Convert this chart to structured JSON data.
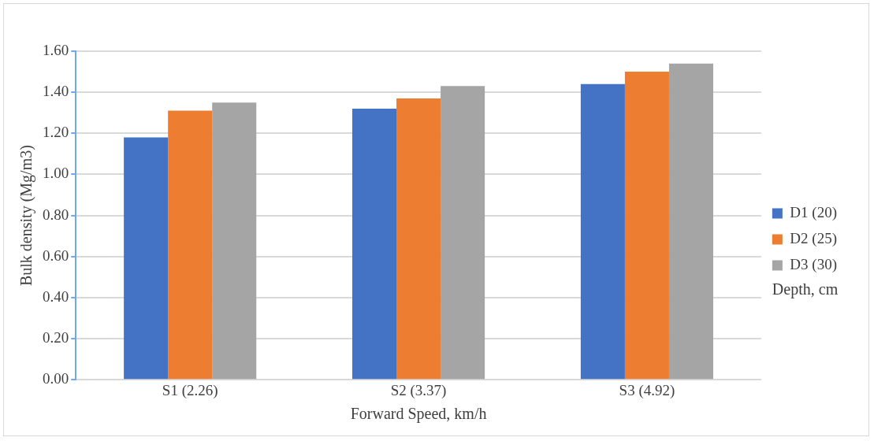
{
  "chart_data": {
    "type": "bar",
    "xlabel": "Forward Speed, km/h",
    "ylabel": "Bulk density (Mg/m3)",
    "legend_title": "Depth, cm",
    "categories": [
      "S1 (2.26)",
      "S2 (3.37)",
      "S3 (4.92)"
    ],
    "series": [
      {
        "name": "D1 (20)",
        "color": "#4472c4",
        "values": [
          1.18,
          1.32,
          1.44
        ]
      },
      {
        "name": "D2 (25)",
        "color": "#ed7d31",
        "values": [
          1.31,
          1.37,
          1.5
        ]
      },
      {
        "name": "D3 (30)",
        "color": "#a5a5a5",
        "values": [
          1.35,
          1.43,
          1.54
        ]
      }
    ],
    "ylim": [
      0,
      1.6
    ],
    "yticks": [
      {
        "value": 0,
        "label": "0.00"
      },
      {
        "value": 0.2,
        "label": "0.20"
      },
      {
        "value": 0.4,
        "label": "0.40"
      },
      {
        "value": 0.6,
        "label": "0.60"
      },
      {
        "value": 0.8,
        "label": "0.80"
      },
      {
        "value": 1.0,
        "label": "1.00"
      },
      {
        "value": 1.2,
        "label": "1.20"
      },
      {
        "value": 1.4,
        "label": "1.40"
      },
      {
        "value": 1.6,
        "label": "1.60"
      }
    ],
    "grid": "y",
    "legend": "right"
  }
}
